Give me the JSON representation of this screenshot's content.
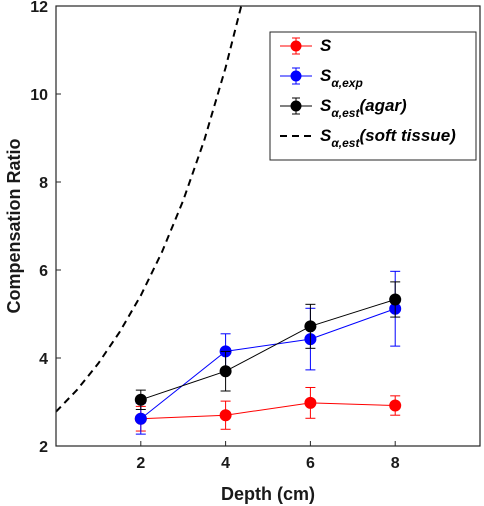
{
  "chart_data": {
    "type": "line",
    "xlabel": "Depth (cm)",
    "ylabel": "Compensation Ratio",
    "xlim": [
      0,
      10
    ],
    "ylim": [
      2,
      12
    ],
    "x_ticks": [
      2,
      4,
      6,
      8
    ],
    "y_ticks": [
      2,
      4,
      6,
      8,
      10,
      12
    ],
    "grid": false,
    "legend_position": "top-right",
    "series": [
      {
        "name": "S",
        "legend_main": "S",
        "legend_sub": "",
        "legend_tail": "",
        "color": "#ff0000",
        "style": "solid-marker",
        "x": [
          2,
          4,
          6,
          8
        ],
        "y": [
          2.62,
          2.7,
          2.98,
          2.92
        ],
        "err": [
          0.28,
          0.32,
          0.35,
          0.22
        ]
      },
      {
        "name": "Sα,exp",
        "legend_main": "S",
        "legend_sub": "α,exp",
        "legend_tail": "",
        "color": "#0000ff",
        "style": "solid-marker",
        "x": [
          2,
          4,
          6,
          8
        ],
        "y": [
          2.62,
          4.15,
          4.43,
          5.12
        ],
        "err": [
          0.35,
          0.4,
          0.7,
          0.85
        ]
      },
      {
        "name": "Sα,est(agar)",
        "legend_main": "S",
        "legend_sub": "α,est",
        "legend_tail": "(agar)",
        "color": "#000000",
        "style": "solid-marker",
        "x": [
          2,
          4,
          6,
          8
        ],
        "y": [
          3.05,
          3.7,
          4.72,
          5.33
        ],
        "err": [
          0.22,
          0.45,
          0.5,
          0.4
        ]
      },
      {
        "name": "Sα,est(soft tissue)",
        "legend_main": "S",
        "legend_sub": "α,est",
        "legend_tail": "(soft tissue)",
        "color": "#000000",
        "style": "dashed",
        "x": [
          0,
          0.5,
          1,
          1.5,
          2,
          2.5,
          3,
          3.5,
          4,
          4.5,
          4.66
        ],
        "y": [
          2.78,
          3.28,
          3.88,
          4.59,
          5.42,
          6.41,
          7.58,
          8.96,
          10.6,
          12.5,
          12.0
        ]
      }
    ]
  }
}
